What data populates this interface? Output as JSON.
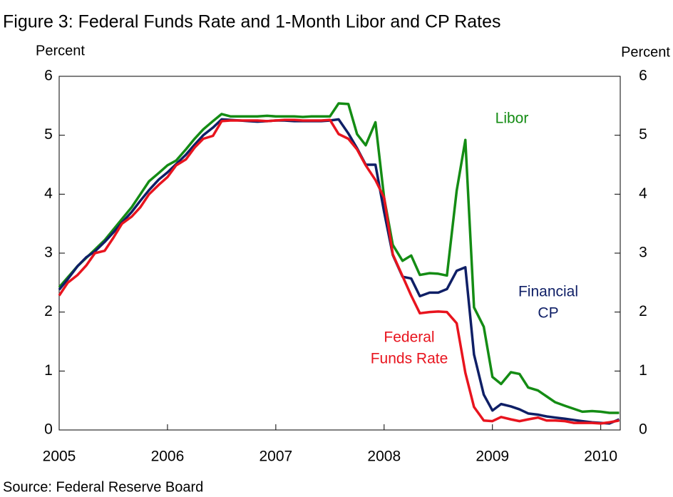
{
  "chart_data": {
    "type": "line",
    "title": "Figure 3: Federal Funds Rate and 1-Month Libor and CP Rates",
    "y_label": "Percent",
    "y2_label": "Percent",
    "source": "Source: Federal Reserve Board",
    "x": [
      2005.0,
      2005.08,
      2005.17,
      2005.25,
      2005.33,
      2005.42,
      2005.5,
      2005.58,
      2005.67,
      2005.75,
      2005.83,
      2005.92,
      2006.0,
      2006.08,
      2006.17,
      2006.25,
      2006.33,
      2006.42,
      2006.5,
      2006.58,
      2006.67,
      2006.75,
      2006.83,
      2006.92,
      2007.0,
      2007.08,
      2007.17,
      2007.25,
      2007.33,
      2007.42,
      2007.5,
      2007.58,
      2007.67,
      2007.75,
      2007.83,
      2007.92,
      2008.0,
      2008.08,
      2008.17,
      2008.25,
      2008.33,
      2008.42,
      2008.5,
      2008.58,
      2008.67,
      2008.75,
      2008.83,
      2008.92,
      2009.0,
      2009.08,
      2009.17,
      2009.25,
      2009.33,
      2009.42,
      2009.5,
      2009.58,
      2009.67,
      2009.75,
      2009.83,
      2009.92,
      2010.0,
      2010.08,
      2010.17
    ],
    "xlim": [
      2005,
      2010.18
    ],
    "xticks": [
      2005,
      2006,
      2007,
      2008,
      2009,
      2010
    ],
    "ylim": [
      0,
      6
    ],
    "yticks": [
      0,
      1,
      2,
      3,
      4,
      5,
      6
    ],
    "y2lim": [
      0,
      6
    ],
    "y2ticks": [
      0,
      1,
      2,
      3,
      4,
      5,
      6
    ],
    "series": [
      {
        "name_lines": [
          "Libor"
        ],
        "color": "#148c14",
        "values": [
          2.42,
          2.59,
          2.78,
          2.92,
          3.06,
          3.22,
          3.4,
          3.58,
          3.78,
          4.0,
          4.22,
          4.36,
          4.49,
          4.57,
          4.76,
          4.94,
          5.1,
          5.24,
          5.36,
          5.32,
          5.32,
          5.32,
          5.32,
          5.33,
          5.32,
          5.32,
          5.32,
          5.31,
          5.32,
          5.32,
          5.32,
          5.54,
          5.53,
          5.02,
          4.83,
          5.22,
          3.94,
          3.14,
          2.87,
          2.96,
          2.63,
          2.66,
          2.65,
          2.62,
          4.06,
          4.92,
          2.08,
          1.75,
          0.9,
          0.78,
          0.98,
          0.95,
          0.72,
          0.67,
          0.57,
          0.47,
          0.41,
          0.36,
          0.31,
          0.32,
          0.31,
          0.29,
          0.29
        ]
      },
      {
        "name_lines": [
          "Financial",
          "CP"
        ],
        "color": "#0f1f66",
        "values": [
          2.38,
          2.56,
          2.78,
          2.93,
          3.03,
          3.19,
          3.35,
          3.52,
          3.7,
          3.89,
          4.07,
          4.25,
          4.37,
          4.51,
          4.67,
          4.84,
          5.0,
          5.13,
          5.27,
          5.26,
          5.25,
          5.24,
          5.23,
          5.24,
          5.25,
          5.25,
          5.24,
          5.24,
          5.24,
          5.24,
          5.25,
          5.27,
          5.03,
          4.78,
          4.5,
          4.5,
          3.7,
          2.97,
          2.6,
          2.57,
          2.27,
          2.33,
          2.33,
          2.39,
          2.7,
          2.76,
          1.28,
          0.6,
          0.33,
          0.44,
          0.4,
          0.35,
          0.28,
          0.26,
          0.23,
          0.21,
          0.19,
          0.17,
          0.15,
          0.13,
          0.12,
          0.11,
          0.18
        ]
      },
      {
        "name_lines": [
          "Federal",
          "Funds Rate"
        ],
        "color": "#e8141e",
        "values": [
          2.28,
          2.5,
          2.63,
          2.79,
          3.0,
          3.04,
          3.26,
          3.5,
          3.62,
          3.78,
          4.0,
          4.16,
          4.29,
          4.49,
          4.59,
          4.79,
          4.94,
          4.99,
          5.24,
          5.25,
          5.25,
          5.25,
          5.25,
          5.24,
          5.25,
          5.26,
          5.26,
          5.25,
          5.25,
          5.25,
          5.26,
          5.02,
          4.94,
          4.76,
          4.49,
          4.24,
          3.94,
          2.98,
          2.61,
          2.28,
          1.98,
          2.0,
          2.01,
          2.0,
          1.81,
          0.97,
          0.39,
          0.16,
          0.15,
          0.22,
          0.18,
          0.15,
          0.18,
          0.21,
          0.16,
          0.16,
          0.15,
          0.12,
          0.12,
          0.12,
          0.11,
          0.13,
          0.16
        ]
      }
    ]
  }
}
